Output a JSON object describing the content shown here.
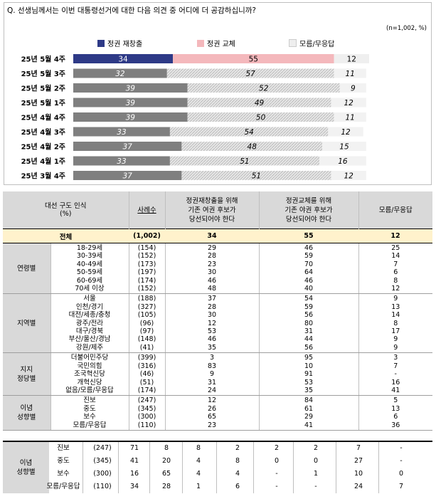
{
  "question": "Q. 선생님께서는 이번 대통령선거에 대한 다음 의견 중 어디에 더 공감하십니까?",
  "sample_note": "(n=1,002, %)",
  "legend": [
    {
      "label": "정권 재창출",
      "color": "#2e3a87"
    },
    {
      "label": "정권 교체",
      "color": "#f4b8bc"
    },
    {
      "label": "모름/무응답",
      "color": "#eeeeee"
    }
  ],
  "chart_data": {
    "type": "bar",
    "orientation": "horizontal",
    "stacked": true,
    "categories": [
      "25년 5월 4주",
      "25년 5월 3주",
      "25년 5월 2주",
      "25년 5월 1주",
      "25년 4월 4주",
      "25년 4월 3주",
      "25년 4월 2주",
      "25년 4월 1주",
      "25년 3월 4주"
    ],
    "series": [
      {
        "name": "정권 재창출",
        "values": [
          34,
          32,
          39,
          39,
          39,
          33,
          37,
          33,
          37
        ]
      },
      {
        "name": "정권 교체",
        "values": [
          55,
          57,
          52,
          49,
          50,
          54,
          48,
          51,
          51
        ]
      },
      {
        "name": "모름/무응답",
        "values": [
          12,
          11,
          9,
          12,
          11,
          12,
          15,
          16,
          12
        ]
      }
    ],
    "xlim": [
      0,
      101
    ],
    "colors": {
      "current": [
        "#2e3a87",
        "#f4b8bc",
        "#efefef"
      ],
      "past": [
        "#7f7f7f",
        "#d0d0d0",
        "#f2f2f2"
      ]
    }
  },
  "table": {
    "headers": {
      "group": "대선 구도 인식\n(%)",
      "sample": "사례수",
      "col1": "정권재창출을 위해\n기존 여권 후보가\n당선되어야 한다",
      "col2": "정권교체를 위해\n기존 야권 후보가\n당선되어야 한다",
      "col3": "모름/무응답"
    },
    "total": {
      "label": "전체",
      "n": "(1,002)",
      "c1": "34",
      "c2": "55",
      "c3": "12"
    },
    "groups": [
      {
        "label": "연령별",
        "rows": [
          "18-29세\n30-39세\n40-49세\n50-59세\n60-69세\n70세 이상",
          "(154)\n(152)\n(173)\n(197)\n(174)\n(152)",
          "29\n28\n23\n30\n46\n48",
          "46\n59\n70\n64\n46\n40",
          "25\n14\n7\n6\n8\n12"
        ]
      },
      {
        "label": "지역별",
        "rows": [
          "서울\n인천/경기\n대전/세종/충청\n광주/전라\n대구/경북\n부산/울산/경남\n강원/제주",
          "(188)\n(327)\n(105)\n(96)\n(97)\n(148)\n(41)",
          "37\n28\n30\n12\n53\n46\n35",
          "54\n59\n56\n80\n31\n44\n56",
          "9\n13\n14\n8\n17\n9\n9"
        ]
      },
      {
        "label": "지지\n정당별",
        "rows": [
          "더불어민주당\n국민의힘\n조국혁신당\n개혁신당\n없음/모름/무응답",
          "(399)\n(316)\n(46)\n(51)\n(174)",
          "3\n83\n9\n31\n24",
          "95\n10\n91\n53\n35",
          "3\n7\n-\n16\n41"
        ]
      },
      {
        "label": "이념\n성향별",
        "rows": [
          "진보\n중도\n보수\n모름/무응답",
          "(247)\n(345)\n(300)\n(110)",
          "12\n26\n65\n23",
          "84\n61\n29\n41",
          "5\n13\n6\n36"
        ]
      }
    ]
  },
  "bottom_fragment": {
    "label": "이념\n성향별",
    "rows": [
      [
        "진보",
        "(247)",
        "71",
        "8",
        "8",
        "2",
        "2",
        "2",
        "7",
        "-"
      ],
      [
        "중도",
        "(345)",
        "41",
        "20",
        "4",
        "8",
        "0",
        "0",
        "27",
        "-"
      ],
      [
        "보수",
        "(300)",
        "16",
        "65",
        "4",
        "4",
        "-",
        "1",
        "10",
        "0"
      ],
      [
        "모름/무응답",
        "(110)",
        "34",
        "28",
        "1",
        "6",
        "-",
        "-",
        "24",
        "7"
      ]
    ]
  }
}
